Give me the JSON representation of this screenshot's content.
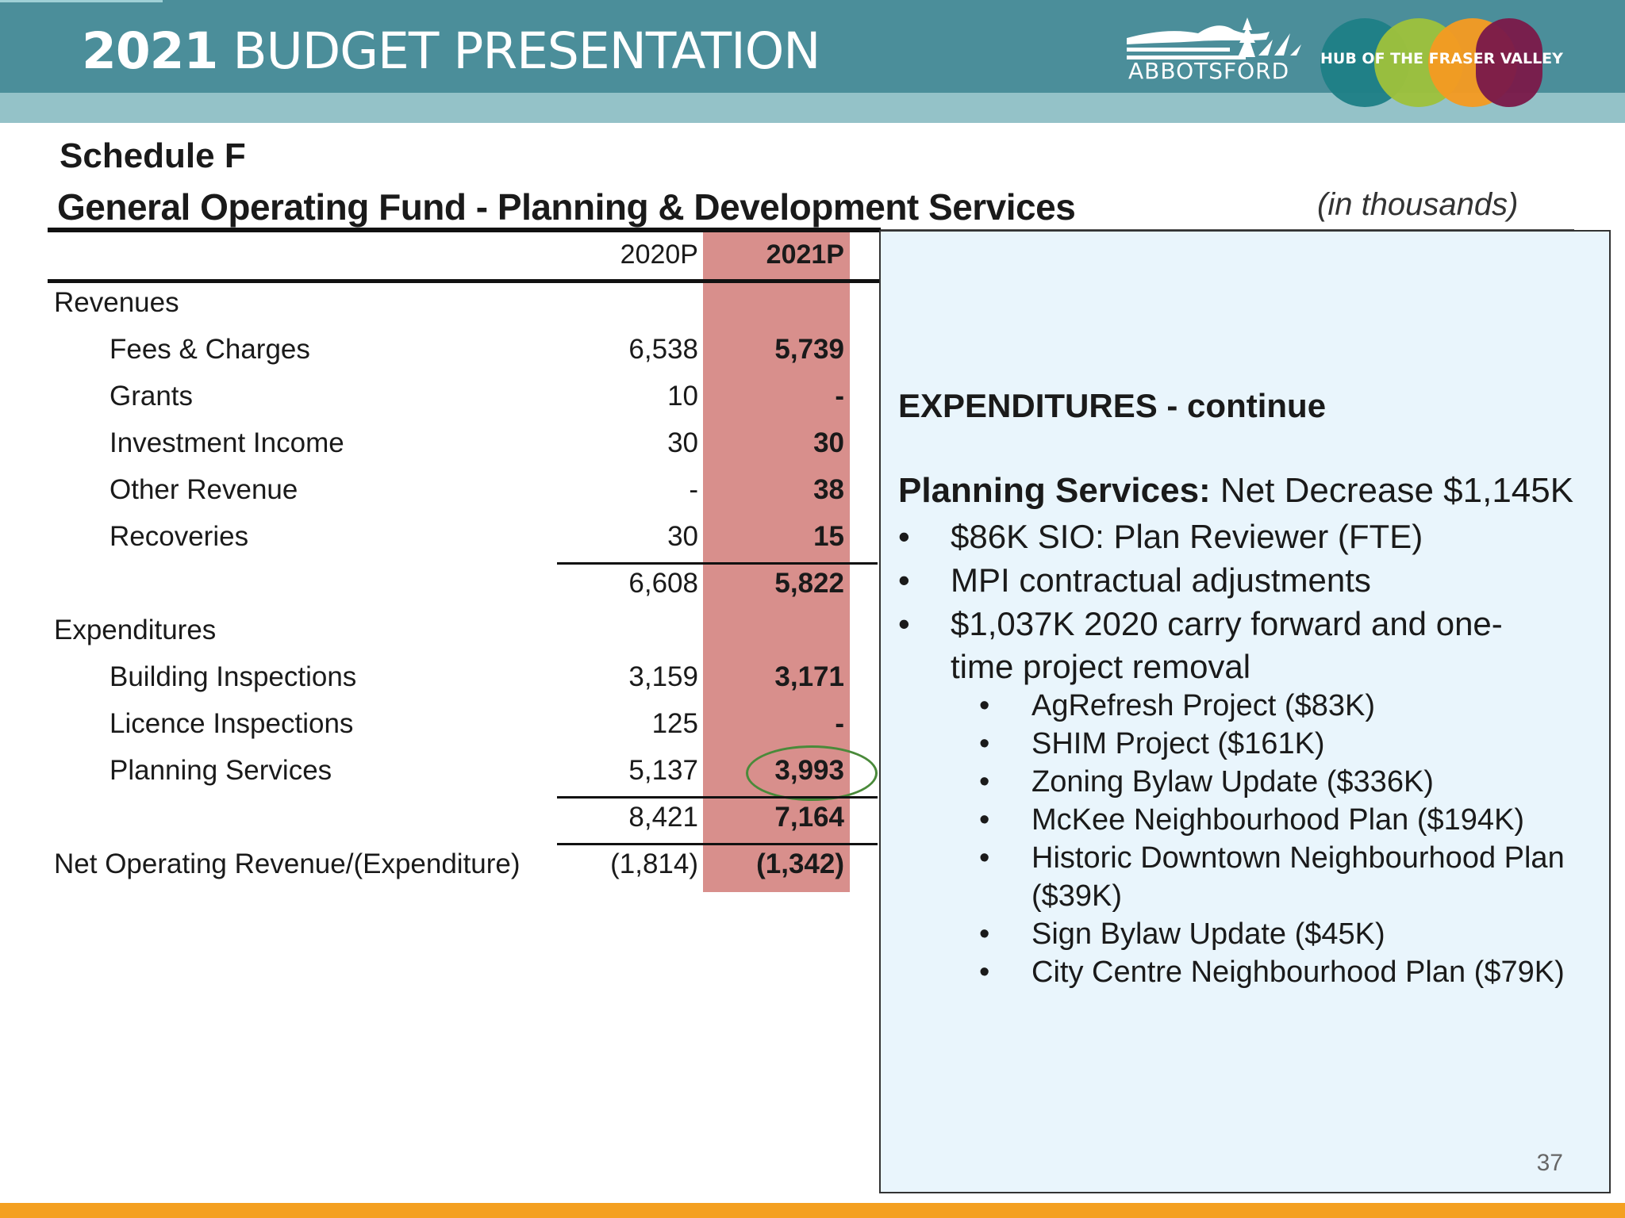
{
  "header": {
    "title_year": "2021",
    "title_rest": "BUDGET PRESENTATION",
    "logo_text": "ABBOTSFORD",
    "hub_text": "HUB OF THE FRASER VALLEY",
    "colors": {
      "bar": "#4b8e9a",
      "sub_bar": "#94c2c8",
      "hub": [
        "#1e7f86",
        "#9dc13c",
        "#f49a22",
        "#7a1a4a"
      ]
    }
  },
  "schedule": {
    "title": "Schedule F",
    "subtitle": "General Operating Fund - Planning & Development Services",
    "units": "(in thousands)",
    "columns": [
      "2020P",
      "2021P"
    ],
    "rows": [
      {
        "label": "Revenues",
        "v2020": "",
        "v2021": ""
      },
      {
        "label": "Fees & Charges",
        "v2020": "6,538",
        "v2021": "5,739"
      },
      {
        "label": "Grants",
        "v2020": "10",
        "v2021": "-"
      },
      {
        "label": "Investment Income",
        "v2020": "30",
        "v2021": "30"
      },
      {
        "label": "Other Revenue",
        "v2020": "-",
        "v2021": "38"
      },
      {
        "label": "Recoveries",
        "v2020": "30",
        "v2021": "15"
      },
      {
        "label": "",
        "v2020": "6,608",
        "v2021": "5,822"
      },
      {
        "label": "Expenditures",
        "v2020": "",
        "v2021": ""
      },
      {
        "label": "Building Inspections",
        "v2020": "3,159",
        "v2021": "3,171"
      },
      {
        "label": "Licence Inspections",
        "v2020": "125",
        "v2021": "-"
      },
      {
        "label": "Planning Services",
        "v2020": "5,137",
        "v2021": "3,993"
      },
      {
        "label": "",
        "v2020": "8,421",
        "v2021": "7,164"
      },
      {
        "label": "Net Operating Revenue/(Expenditure)",
        "v2020": "(1,814)",
        "v2021": "(1,342)"
      }
    ]
  },
  "notes": {
    "heading": "EXPENDITURES - continue",
    "para_bold": "Planning Services:",
    "para_rest": " Net Decrease $1,145K",
    "bullets": [
      "$86K SIO: Plan Reviewer (FTE)",
      "MPI contractual adjustments",
      "$1,037K 2020 carry forward and one-",
      "time project removal"
    ],
    "sub_bullets": [
      "AgRefresh Project ($83K)",
      "SHIM Project ($161K)",
      "Zoning Bylaw Update ($336K)",
      "McKee Neighbourhood Plan ($194K)",
      "Historic Downtown Neighbourhood Plan",
      "($39K)",
      "Sign Bylaw Update ($45K)",
      "City Centre Neighbourhood Plan ($79K)"
    ],
    "page_number": "37"
  }
}
